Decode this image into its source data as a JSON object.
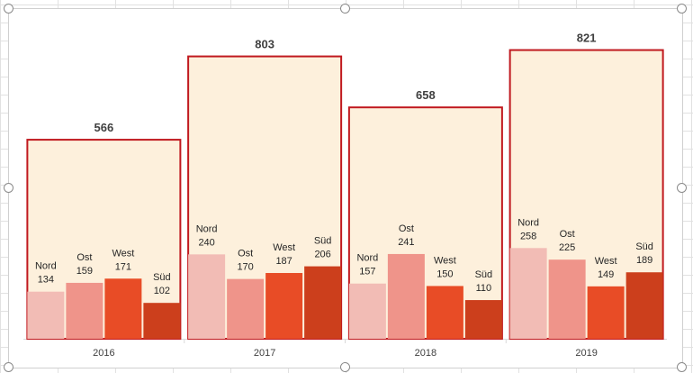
{
  "chart_data": {
    "type": "bar",
    "title": "",
    "xlabel": "",
    "ylabel": "",
    "ylim": [
      0,
      900
    ],
    "grid": false,
    "legend": "none",
    "categories": [
      "2016",
      "2017",
      "2018",
      "2019"
    ],
    "totals": [
      566,
      803,
      658,
      821
    ],
    "series": [
      {
        "name": "Nord",
        "values": [
          134,
          240,
          157,
          258
        ],
        "color": "#f2bcb5"
      },
      {
        "name": "Ost",
        "values": [
          159,
          170,
          241,
          225
        ],
        "color": "#ef948a"
      },
      {
        "name": "West",
        "values": [
          171,
          187,
          150,
          149
        ],
        "color": "#e84c26"
      },
      {
        "name": "Süd",
        "values": [
          102,
          206,
          110,
          189
        ],
        "color": "#cc3f1c"
      }
    ],
    "total_fill": "#fdf0dc",
    "total_border": "#c0191f"
  }
}
